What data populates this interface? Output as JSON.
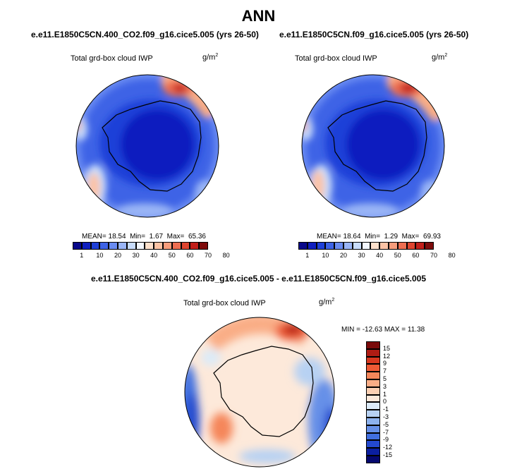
{
  "title": "ANN",
  "panels": [
    {
      "case": "e.e11.E1850C5CN.400_CO2.f09_g16.cice5.005 (yrs 26-50)",
      "variable": "Total grd-box cloud IWP",
      "units": "g/m",
      "units_sup": "2",
      "stats": {
        "mean_label": "MEAN=",
        "mean": "18.54",
        "min_label": "Min=",
        "min": "1.67",
        "max_label": "Max=",
        "max": "65.36"
      }
    },
    {
      "case": "e.e11.E1850C5CN.f09_g16.cice5.005 (yrs 26-50)",
      "variable": "Total grd-box cloud IWP",
      "units": "g/m",
      "units_sup": "2",
      "stats": {
        "mean_label": "MEAN=",
        "mean": "18.64",
        "min_label": "Min=",
        "min": "1.29",
        "max_label": "Max=",
        "max": "69.93"
      }
    }
  ],
  "diff": {
    "title": "e.e11.E1850C5CN.400_CO2.f09_g16.cice5.005 - e.e11.E1850C5CN.f09_g16.cice5.005",
    "variable": "Total grd-box cloud IWP",
    "units": "g/m",
    "units_sup": "2",
    "stats": "MIN = -12.63 MAX =  11.38"
  },
  "chart_data": [
    {
      "type": "heatmap",
      "projection": "south-polar stereographic",
      "title": "e.e11.E1850C5CN.400_CO2.f09_g16.cice5.005 (yrs 26-50)",
      "variable": "Total grd-box cloud IWP",
      "units": "g/m2",
      "mean": 18.54,
      "min": 1.67,
      "max": 65.36,
      "colorbar": {
        "orientation": "horizontal",
        "levels": [
          "1",
          "10",
          "20",
          "30",
          "40",
          "50",
          "60",
          "70",
          "80"
        ],
        "colors": [
          "#08088a",
          "#0f1fbf",
          "#1f40d8",
          "#3e63e6",
          "#6a8cf2",
          "#9ab5f6",
          "#c8dcfb",
          "#f2f6fd",
          "#fde0cb",
          "#fcc3a5",
          "#f79d7c",
          "#ee6e51",
          "#de4530",
          "#c11f1a",
          "#7e0b0b"
        ]
      }
    },
    {
      "type": "heatmap",
      "projection": "south-polar stereographic",
      "title": "e.e11.E1850C5CN.f09_g16.cice5.005 (yrs 26-50)",
      "variable": "Total grd-box cloud IWP",
      "units": "g/m2",
      "mean": 18.64,
      "min": 1.29,
      "max": 69.93,
      "colorbar": {
        "orientation": "horizontal",
        "levels": [
          "1",
          "10",
          "20",
          "30",
          "40",
          "50",
          "60",
          "70",
          "80"
        ],
        "colors": [
          "#08088a",
          "#0f1fbf",
          "#1f40d8",
          "#3e63e6",
          "#6a8cf2",
          "#9ab5f6",
          "#c8dcfb",
          "#f2f6fd",
          "#fde0cb",
          "#fcc3a5",
          "#f79d7c",
          "#ee6e51",
          "#de4530",
          "#c11f1a",
          "#7e0b0b"
        ]
      }
    },
    {
      "type": "heatmap",
      "projection": "south-polar stereographic",
      "title": "e.e11.E1850C5CN.400_CO2.f09_g16.cice5.005 - e.e11.E1850C5CN.f09_g16.cice5.005",
      "variable": "Total grd-box cloud IWP",
      "units": "g/m2",
      "min": -12.63,
      "max": 11.38,
      "colorbar": {
        "orientation": "vertical",
        "levels": [
          "15",
          "12",
          "9",
          "7",
          "5",
          "3",
          "1",
          "0",
          "-1",
          "-3",
          "-5",
          "-7",
          "-9",
          "-12",
          "-15"
        ],
        "colors": [
          "#7a0a0a",
          "#b01c14",
          "#d8381f",
          "#ee5a35",
          "#f5865a",
          "#f9ad86",
          "#fcd0b3",
          "#fde9da",
          "#dcebf8",
          "#b7d1f3",
          "#8db2ee",
          "#6690e8",
          "#416fe0",
          "#2449cf",
          "#0b1fa0",
          "#05086e"
        ]
      }
    }
  ]
}
